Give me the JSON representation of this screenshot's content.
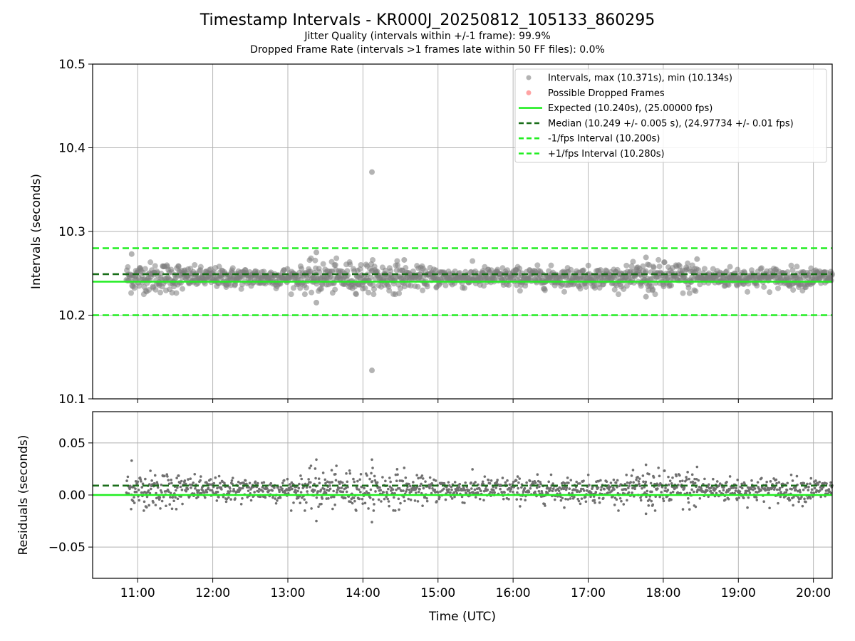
{
  "chart_data": [
    {
      "type": "scatter",
      "title": "Timestamp Intervals - KR000J_20250812_105133_860295",
      "subtitle_lines": [
        "Jitter Quality (intervals within +/-1 frame): 99.9%",
        "Dropped Frame Rate (intervals >1 frames late within 50 FF files): 0.0%"
      ],
      "xlabel": "",
      "ylabel": "Intervals (seconds)",
      "ylim": [
        10.1,
        10.5
      ],
      "yticks": [
        10.1,
        10.2,
        10.3,
        10.4,
        10.5
      ],
      "ytick_labels": [
        "10.1",
        "10.2",
        "10.3",
        "10.4",
        "10.5"
      ],
      "xlim_hours": [
        10.4,
        20.25
      ],
      "xticks_hours": [
        11,
        12,
        13,
        14,
        15,
        16,
        17,
        18,
        19,
        20
      ],
      "xtick_labels": [
        "11:00",
        "12:00",
        "13:00",
        "14:00",
        "15:00",
        "16:00",
        "17:00",
        "18:00",
        "19:00",
        "20:00"
      ],
      "grid": true,
      "legend_position": "top-right",
      "series": [
        {
          "name": "Intervals, max (10.371s), min (10.134s)",
          "kind": "points",
          "color": "#808080",
          "x_range_hours": [
            10.85,
            20.25
          ],
          "center": 10.245,
          "typical_spread": 0.006,
          "notable_points": [
            {
              "x_hour": 14.12,
              "y": 10.371
            },
            {
              "x_hour": 14.12,
              "y": 10.134
            },
            {
              "x_hour": 13.38,
              "y": 10.215
            },
            {
              "x_hour": 13.38,
              "y": 10.275
            },
            {
              "x_hour": 10.92,
              "y": 10.273
            },
            {
              "x_hour": 17.77,
              "y": 10.222
            },
            {
              "x_hour": 17.77,
              "y": 10.269
            },
            {
              "x_hour": 18.45,
              "y": 10.267
            },
            {
              "x_hour": 14.55,
              "y": 10.266
            }
          ]
        },
        {
          "name": "Possible Dropped Frames",
          "kind": "points",
          "color": "#ff6666",
          "points": []
        },
        {
          "name": "Expected (10.240s), (25.00000 fps)",
          "kind": "hline",
          "y": 10.24,
          "color": "#22ee22",
          "style": "solid"
        },
        {
          "name": "Median (10.249 +/- 0.005 s), (24.97734 +/- 0.01 fps)",
          "kind": "hline",
          "y": 10.249,
          "color": "#1a6e1a",
          "style": "dashed"
        },
        {
          "name": "-1/fps Interval (10.200s)",
          "kind": "hline",
          "y": 10.2,
          "color": "#22ee22",
          "style": "dashed"
        },
        {
          "name": "+1/fps Interval (10.280s)",
          "kind": "hline",
          "y": 10.28,
          "color": "#22ee22",
          "style": "dashed"
        }
      ]
    },
    {
      "type": "scatter",
      "title": "",
      "xlabel": "Time (UTC)",
      "ylabel": "Residuals (seconds)",
      "ylim": [
        -0.08,
        0.08
      ],
      "yticks": [
        -0.05,
        0.0,
        0.05
      ],
      "ytick_labels": [
        "−0.05",
        "0.00",
        "0.05"
      ],
      "xlim_hours": [
        10.4,
        20.25
      ],
      "xticks_hours": [
        11,
        12,
        13,
        14,
        15,
        16,
        17,
        18,
        19,
        20
      ],
      "xtick_labels": [
        "11:00",
        "12:00",
        "13:00",
        "14:00",
        "15:00",
        "16:00",
        "17:00",
        "18:00",
        "19:00",
        "20:00"
      ],
      "grid": true,
      "series": [
        {
          "name": "",
          "kind": "points",
          "color": "#707070",
          "center": 0.005,
          "typical_spread": 0.006
        },
        {
          "name": "",
          "kind": "hline",
          "y": 0.0,
          "color": "#22ee22",
          "style": "solid"
        },
        {
          "name": "",
          "kind": "hline",
          "y": 0.009,
          "color": "#1a6e1a",
          "style": "dashed"
        }
      ]
    }
  ]
}
